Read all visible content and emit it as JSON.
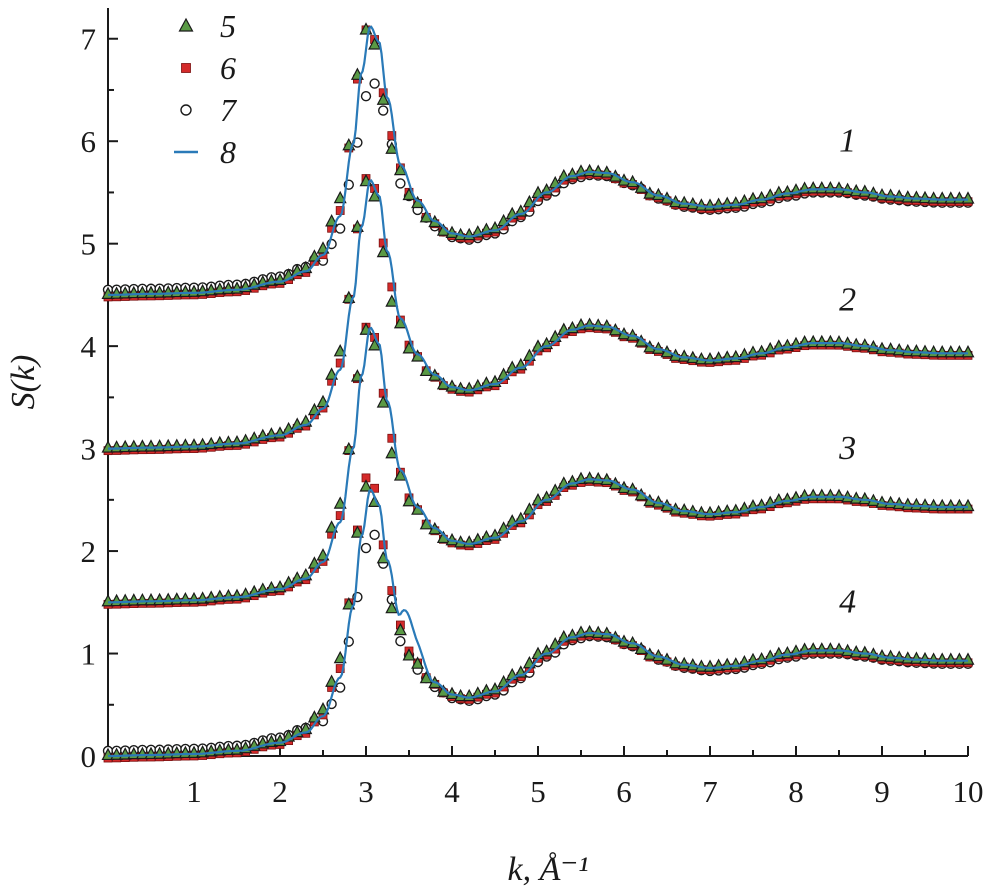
{
  "chart_data": {
    "type": "line",
    "xlabel": "k, Å⁻¹",
    "ylabel": "S(k)",
    "xlim": [
      0,
      10
    ],
    "ylim": [
      0,
      7.3
    ],
    "xticks": [
      "1",
      "2",
      "3",
      "4",
      "5",
      "6",
      "7",
      "8",
      "9",
      "10"
    ],
    "yticks": [
      "0",
      "1",
      "2",
      "3",
      "4",
      "5",
      "6",
      "7"
    ],
    "grid": false,
    "legend_position": "top-left",
    "colors": {
      "triangle": "#5a9a45",
      "square": "#d42a2a",
      "circle": "#ffffff",
      "line": "#2a7ab8"
    },
    "legend": [
      {
        "marker": "triangle",
        "label": "5"
      },
      {
        "marker": "square",
        "label": "6"
      },
      {
        "marker": "circle",
        "label": "7"
      },
      {
        "marker": "line",
        "label": "8"
      }
    ],
    "curve_labels": [
      {
        "text": "1",
        "x": 8.6,
        "y": 5.9
      },
      {
        "text": "2",
        "x": 8.6,
        "y": 4.35
      },
      {
        "text": "3",
        "x": 8.6,
        "y": 2.9
      },
      {
        "text": "4",
        "x": 8.6,
        "y": 1.4
      }
    ],
    "shape": {
      "x": [
        0.0,
        0.5,
        1.0,
        1.5,
        2.0,
        2.3,
        2.5,
        2.7,
        2.85,
        2.95,
        3.05,
        3.15,
        3.25,
        3.4,
        3.6,
        3.8,
        4.0,
        4.2,
        4.5,
        4.8,
        5.1,
        5.4,
        5.6,
        5.8,
        6.1,
        6.4,
        6.7,
        7.0,
        7.3,
        7.6,
        7.9,
        8.2,
        8.5,
        8.8,
        9.1,
        9.4,
        9.7,
        10.0
      ],
      "y": [
        0.03,
        0.04,
        0.05,
        0.08,
        0.16,
        0.26,
        0.42,
        0.8,
        1.5,
        2.2,
        2.65,
        2.5,
        1.95,
        1.3,
        0.95,
        0.75,
        0.63,
        0.6,
        0.66,
        0.82,
        1.03,
        1.19,
        1.23,
        1.22,
        1.13,
        1.0,
        0.92,
        0.89,
        0.91,
        0.96,
        1.02,
        1.06,
        1.06,
        1.03,
        0.99,
        0.97,
        0.96,
        0.96
      ]
    },
    "series": [
      {
        "label": "1",
        "offset": 4.5,
        "peak": 7.1,
        "markers": {
          "triangle": {
            "offset": 4.5,
            "peak": 7.08
          },
          "square": {
            "offset": 4.5,
            "peak": 7.15
          },
          "circle": {
            "offset": 4.5,
            "peak": 6.65
          }
        },
        "line": {
          "offset": 4.5,
          "peak": 7.12
        }
      },
      {
        "label": "2",
        "offset": 3.0,
        "peak": 5.6,
        "markers": {
          "triangle": {
            "offset": 3.0,
            "peak": 5.6
          },
          "square": {
            "offset": 3.0,
            "peak": 5.7
          }
        },
        "line": {
          "offset": 3.0,
          "peak": 5.62
        }
      },
      {
        "label": "3",
        "offset": 1.5,
        "peak": 4.15,
        "markers": {
          "triangle": {
            "offset": 1.5,
            "peak": 4.15
          },
          "square": {
            "offset": 1.5,
            "peak": 4.25
          }
        },
        "line": {
          "offset": 1.5,
          "peak": 4.18
        }
      },
      {
        "label": "4",
        "offset": 0.0,
        "peak": 2.6,
        "markers": {
          "triangle": {
            "offset": 0.0,
            "peak": 2.62
          },
          "square": {
            "offset": 0.0,
            "peak": 2.78
          },
          "circle": {
            "offset": 0.0,
            "peak": 2.25
          }
        },
        "line": {
          "offset": 0.0,
          "peak": 2.6,
          "shoulder": true
        }
      }
    ]
  }
}
